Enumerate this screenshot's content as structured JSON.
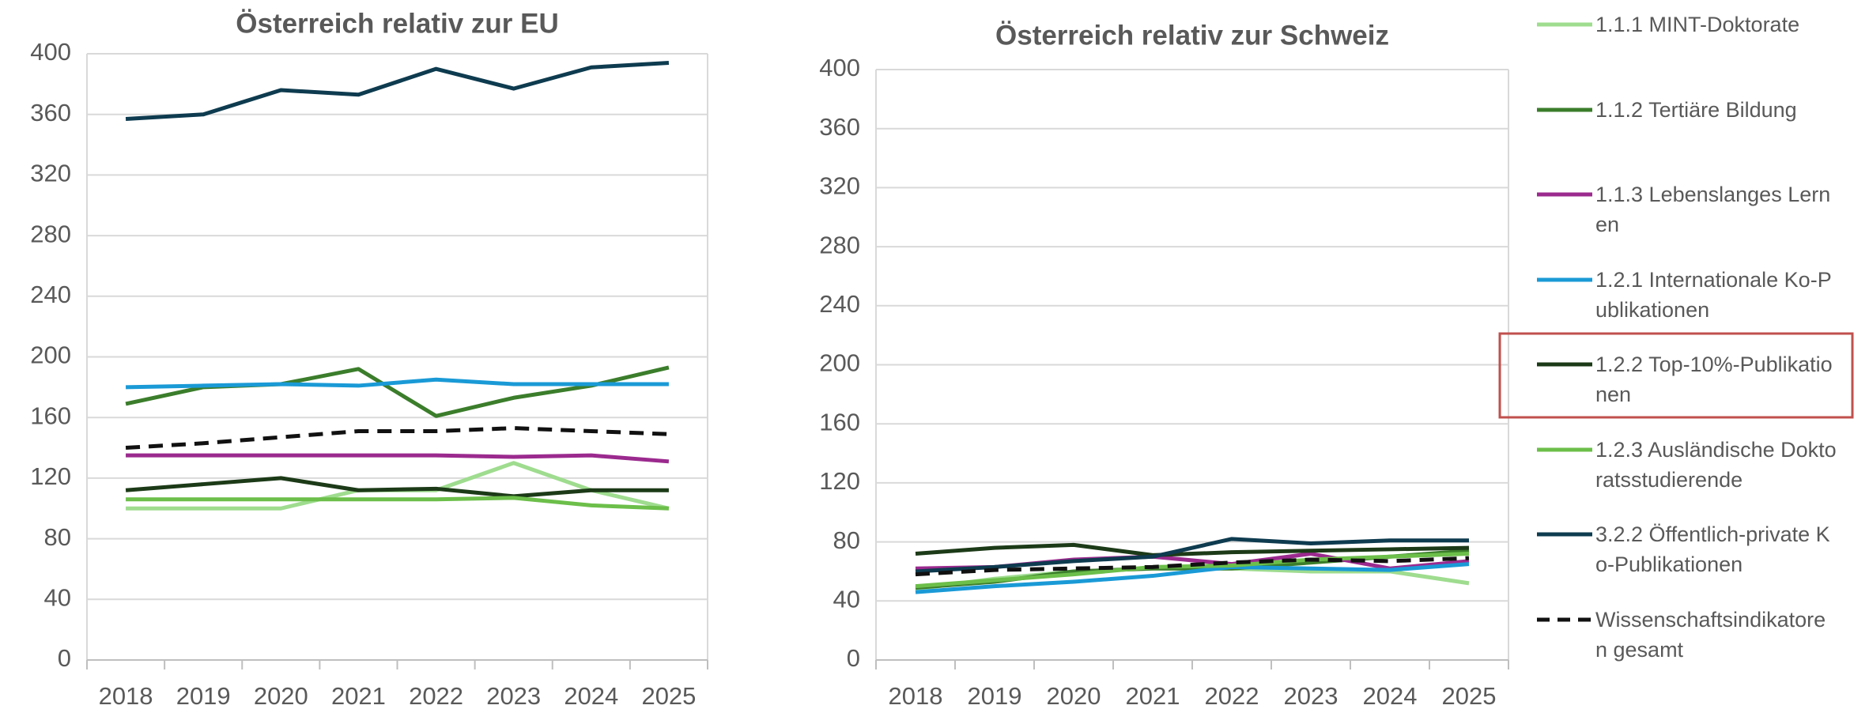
{
  "chart_data": [
    {
      "type": "line",
      "title": "Österreich relativ zur EU",
      "categories": [
        "2018",
        "2019",
        "2020",
        "2021",
        "2022",
        "2023",
        "2024",
        "2025"
      ],
      "ylim": [
        0,
        400
      ],
      "yticks": [
        0,
        40,
        80,
        120,
        160,
        200,
        240,
        280,
        320,
        360,
        400
      ],
      "grid": true,
      "series": [
        {
          "name": "1.1.1 MINT-Doktorate",
          "color": "#9fdc8f",
          "values": [
            100,
            100,
            100,
            112,
            112,
            130,
            112,
            100
          ]
        },
        {
          "name": "1.1.2 Tertiäre Bildung",
          "color": "#3b7d2b",
          "values": [
            169,
            180,
            182,
            192,
            161,
            173,
            181,
            193
          ]
        },
        {
          "name": "1.1.3 Lebenslanges Lernen",
          "color": "#9b2a8e",
          "values": [
            135,
            135,
            135,
            135,
            135,
            134,
            135,
            131
          ]
        },
        {
          "name": "1.2.1 Internationale Ko-Publikationen",
          "color": "#1a9ad6",
          "values": [
            180,
            181,
            182,
            181,
            185,
            182,
            182,
            182
          ]
        },
        {
          "name": "1.2.2 Top-10%-Publikationen",
          "color": "#1c3a17",
          "values": [
            112,
            116,
            120,
            112,
            113,
            108,
            112,
            112
          ]
        },
        {
          "name": "1.2.3 Ausländische Doktoratsstudierende",
          "color": "#6cbf4a",
          "values": [
            106,
            106,
            106,
            106,
            106,
            107,
            102,
            100
          ]
        },
        {
          "name": "3.2.2 Öffentlich-private Ko-Publikationen",
          "color": "#0e3b4f",
          "values": [
            357,
            360,
            376,
            373,
            390,
            377,
            391,
            394
          ]
        },
        {
          "name": "Wissenschaftsindikatoren gesamt",
          "color": "#111111",
          "style": "dashed",
          "values": [
            140,
            143,
            147,
            151,
            151,
            153,
            151,
            149
          ]
        }
      ]
    },
    {
      "type": "line",
      "title": "Österreich relativ zur Schweiz",
      "categories": [
        "2018",
        "2019",
        "2020",
        "2021",
        "2022",
        "2023",
        "2024",
        "2025"
      ],
      "ylim": [
        0,
        400
      ],
      "yticks": [
        0,
        40,
        80,
        120,
        160,
        200,
        240,
        280,
        320,
        360,
        400
      ],
      "grid": true,
      "series": [
        {
          "color": "#9fdc8f",
          "values": [
            48,
            55,
            60,
            62,
            62,
            60,
            60,
            52
          ]
        },
        {
          "color": "#3b7d2b",
          "values": [
            49,
            53,
            60,
            62,
            62,
            66,
            70,
            74
          ]
        },
        {
          "color": "#9b2a8e",
          "values": [
            62,
            63,
            68,
            70,
            65,
            72,
            62,
            67
          ]
        },
        {
          "color": "#1a9ad6",
          "values": [
            46,
            50,
            53,
            57,
            63,
            62,
            61,
            65
          ]
        },
        {
          "color": "#1c3a17",
          "values": [
            72,
            76,
            78,
            71,
            73,
            74,
            75,
            76
          ]
        },
        {
          "color": "#6cbf4a",
          "values": [
            50,
            54,
            58,
            63,
            64,
            68,
            70,
            72
          ]
        },
        {
          "color": "#0e3b4f",
          "values": [
            60,
            63,
            67,
            70,
            82,
            79,
            81,
            81
          ]
        },
        {
          "color": "#111111",
          "style": "dashed",
          "values": [
            58,
            61,
            62,
            63,
            66,
            68,
            67,
            69
          ]
        }
      ]
    }
  ]
}
